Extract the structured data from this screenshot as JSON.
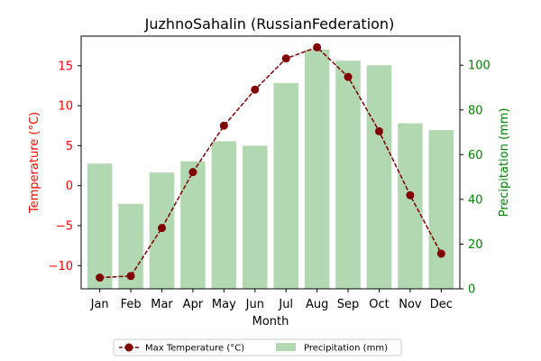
{
  "chart_data": {
    "type": "bar+line",
    "title": "JuzhnoSahalin (RussianFederation)",
    "xlabel": "Month",
    "categories": [
      "Jan",
      "Feb",
      "Mar",
      "Apr",
      "May",
      "Jun",
      "Jul",
      "Aug",
      "Sep",
      "Oct",
      "Nov",
      "Dec"
    ],
    "series": [
      {
        "name": "Max Temperature (°C)",
        "type": "line",
        "axis": "left",
        "color": "#800000",
        "values": [
          -11.5,
          -11.3,
          -5.3,
          1.7,
          7.5,
          12.0,
          15.9,
          17.3,
          13.6,
          6.8,
          -1.2,
          -8.5
        ]
      },
      {
        "name": "Precipitation (mm)",
        "type": "bar",
        "axis": "right",
        "color": "#b1d8b1",
        "values": [
          56,
          38,
          52,
          57,
          66,
          64,
          92,
          107,
          102,
          100,
          74,
          71
        ]
      }
    ],
    "y_left": {
      "label": "Temperature (°C)",
      "ylim": [
        -12.9,
        18.7
      ],
      "ticks": [
        -10,
        -5,
        0,
        5,
        10,
        15
      ],
      "color": "#ff0000"
    },
    "y_right": {
      "label": "Precipitation (mm)",
      "ylim": [
        0,
        113
      ],
      "ticks": [
        0,
        20,
        40,
        60,
        80,
        100
      ],
      "color": "#008000"
    },
    "legend": {
      "placement": "bottom-center",
      "entries": [
        "Max Temperature (°C)",
        "Precipitation (mm)"
      ]
    },
    "grid": false
  }
}
